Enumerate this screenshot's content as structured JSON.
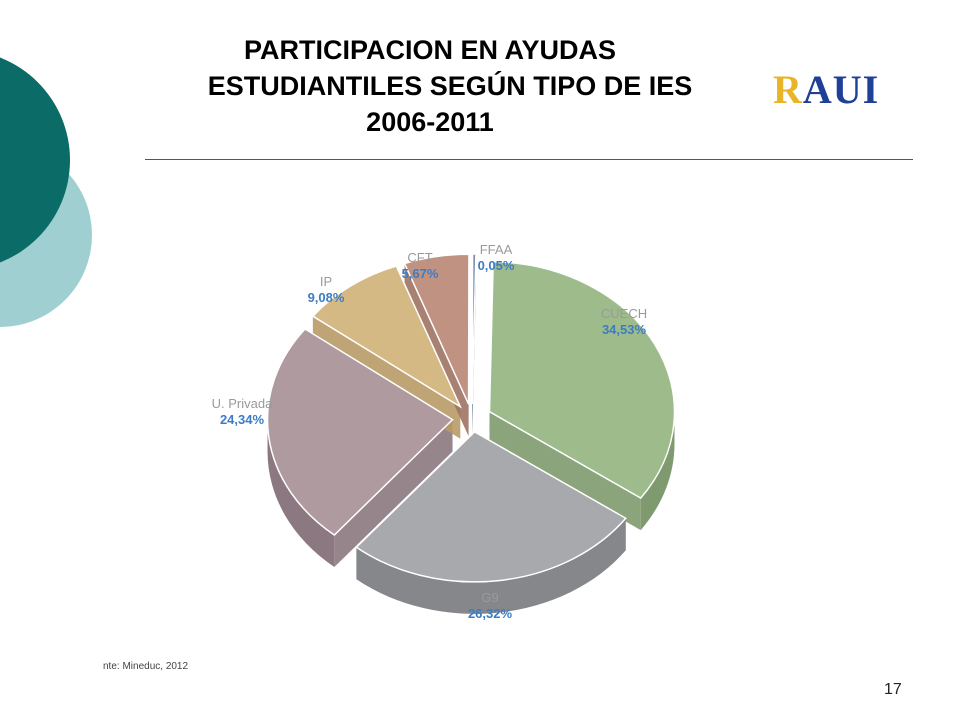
{
  "slide": {
    "title_lines": [
      "PARTICIPACION EN AYUDAS",
      "ESTUDIANTILES SEGÚN TIPO DE IES",
      "2006-2011"
    ],
    "logo": {
      "letters": [
        "R",
        "A",
        "U",
        "I"
      ],
      "colors": [
        "#e9b528",
        "#1f3f99",
        "#1f3f99",
        "#1f3f99"
      ]
    },
    "source": "nte: Mineduc, 2012",
    "page_number": "17"
  },
  "chart_data": {
    "type": "pie",
    "style": "3d-exploded",
    "title": "",
    "slices": [
      {
        "label": "CUECH",
        "value_label": "34,53%",
        "value": 34.53,
        "color": "#9dbb8b",
        "side": "#7f9a6e"
      },
      {
        "label": "G9",
        "value_label": "26,32%",
        "value": 26.32,
        "color": "#a7a9ac",
        "side": "#85878a"
      },
      {
        "label": "U. Privada",
        "value_label": "24,34%",
        "value": 24.34,
        "color": "#ae9a9f",
        "side": "#8c7880"
      },
      {
        "label": "IP",
        "value_label": "9,08%",
        "value": 9.08,
        "color": "#d5b985",
        "side": "#b89a66"
      },
      {
        "label": "CFT",
        "value_label": "5,67%",
        "value": 5.67,
        "color": "#c09281",
        "side": "#9e7363"
      },
      {
        "label": "FFAA",
        "value_label": "0,05%",
        "value": 0.05,
        "color": "#7c8fae",
        "side": "#5d6f8c"
      }
    ],
    "label_color": "#9a9a9a",
    "value_color": "#3d7cc4"
  }
}
